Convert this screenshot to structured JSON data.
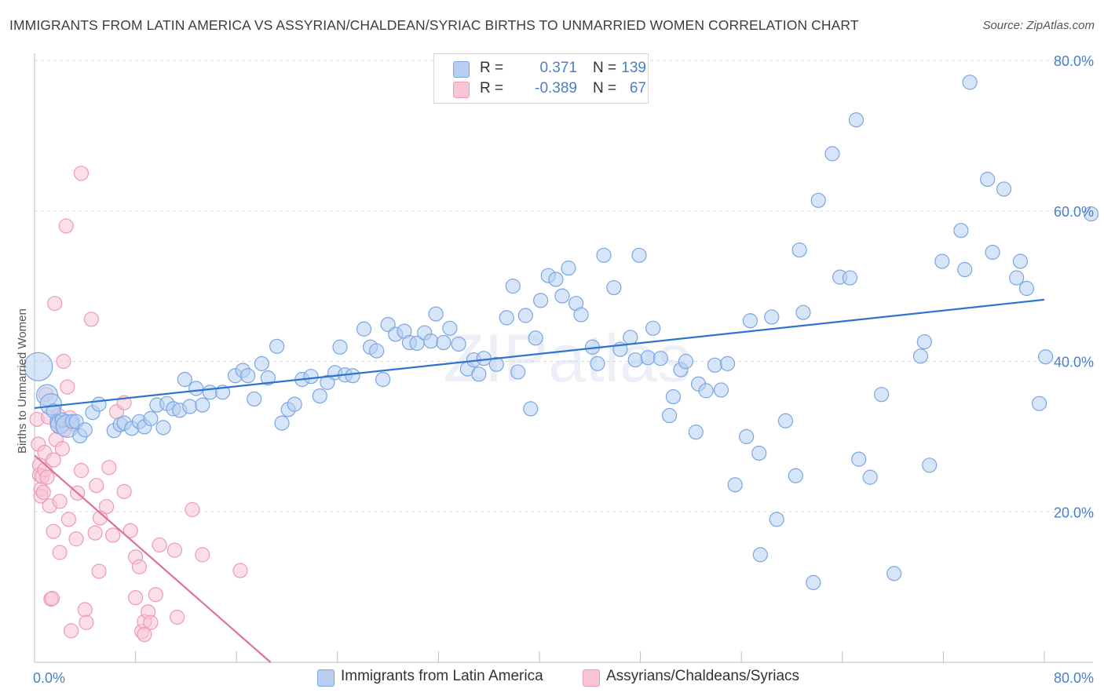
{
  "title": "IMMIGRANTS FROM LATIN AMERICA VS ASSYRIAN/CHALDEAN/SYRIAC BIRTHS TO UNMARRIED WOMEN CORRELATION CHART",
  "source": "Source: ZipAtlas.com",
  "watermark": "ZIPatlas",
  "colors": {
    "blue_fill": "#b7cff2",
    "blue_stroke": "#7ba6e0",
    "blue_line": "#2f73d0",
    "pink_fill": "#f8c5d5",
    "pink_stroke": "#ee9ab5",
    "pink_line": "#e0729a",
    "tick_text": "#4a7fc8",
    "grid": "#d9d9d9"
  },
  "legend_top": {
    "rows": [
      {
        "r_label": "R =",
        "r_value": "0.371",
        "n_label": "N =",
        "n_value": "139"
      },
      {
        "r_label": "R =",
        "r_value": "-0.389",
        "n_label": "N =",
        "n_value": "67"
      }
    ]
  },
  "legend_bottom": [
    "Immigrants from Latin America",
    "Assyrians/Chaldeans/Syriacs"
  ],
  "chart_data": {
    "type": "scatter",
    "title": "IMMIGRANTS FROM LATIN AMERICA VS ASSYRIAN/CHALDEAN/SYRIAC BIRTHS TO UNMARRIED WOMEN CORRELATION CHART",
    "xlabel": "",
    "ylabel": "Births to Unmarried Women",
    "xlim": [
      0,
      80
    ],
    "ylim": [
      0,
      80
    ],
    "x_tick_labels": [
      "0.0%",
      "80.0%"
    ],
    "y_tick_values": [
      20,
      40,
      60,
      80
    ],
    "y_tick_labels": [
      "20.0%",
      "40.0%",
      "60.0%",
      "80.0%"
    ],
    "grid": true,
    "legend_position": "top-center",
    "series": [
      {
        "name": "Immigrants from Latin America",
        "color": "#b7cff2",
        "r": 0.371,
        "n": 139,
        "trend": {
          "x": [
            0,
            80
          ],
          "y": [
            33.8,
            48.2
          ]
        },
        "points": [
          [
            0.3,
            39.3,
            2
          ],
          [
            1.0,
            35.5,
            1.5
          ],
          [
            1.3,
            34.3,
            1.5
          ],
          [
            1.5,
            33.4,
            1
          ],
          [
            1.8,
            32.0,
            1
          ],
          [
            2.0,
            31.6,
            1.3
          ],
          [
            2.2,
            32.2,
            1
          ],
          [
            2.6,
            31.4,
            1.6
          ],
          [
            3.0,
            32.0,
            1
          ],
          [
            3.3,
            32.0,
            1
          ],
          [
            3.6,
            30.1,
            1
          ],
          [
            4.0,
            30.9,
            1
          ],
          [
            4.6,
            33.2,
            1
          ],
          [
            5.1,
            34.3,
            1
          ],
          [
            6.3,
            30.8,
            1
          ],
          [
            6.8,
            31.6,
            1
          ],
          [
            7.1,
            31.8,
            1
          ],
          [
            7.7,
            31.1,
            1
          ],
          [
            8.3,
            32.0,
            1
          ],
          [
            8.7,
            31.3,
            1
          ],
          [
            9.2,
            32.4,
            1
          ],
          [
            9.7,
            34.2,
            1
          ],
          [
            10.2,
            31.2,
            1
          ],
          [
            10.5,
            34.4,
            1
          ],
          [
            11.0,
            33.7,
            1
          ],
          [
            11.5,
            33.5,
            1
          ],
          [
            11.9,
            37.6,
            1
          ],
          [
            12.3,
            34.0,
            1
          ],
          [
            12.8,
            36.4,
            1
          ],
          [
            13.3,
            34.2,
            1
          ],
          [
            13.9,
            35.9,
            1
          ],
          [
            14.9,
            35.9,
            1
          ],
          [
            15.9,
            38.1,
            1
          ],
          [
            16.5,
            38.8,
            1
          ],
          [
            16.9,
            38.1,
            1
          ],
          [
            17.4,
            35.0,
            1
          ],
          [
            18.0,
            39.7,
            1
          ],
          [
            18.5,
            37.8,
            1
          ],
          [
            19.2,
            42.0,
            1
          ],
          [
            19.6,
            31.8,
            1
          ],
          [
            20.1,
            33.6,
            1
          ],
          [
            20.6,
            34.3,
            1
          ],
          [
            21.2,
            37.6,
            1
          ],
          [
            21.9,
            38.0,
            1
          ],
          [
            22.6,
            35.4,
            1
          ],
          [
            23.2,
            37.2,
            1
          ],
          [
            23.8,
            38.5,
            1
          ],
          [
            24.2,
            41.9,
            1
          ],
          [
            24.6,
            38.2,
            1
          ],
          [
            25.2,
            38.1,
            1
          ],
          [
            26.1,
            44.3,
            1
          ],
          [
            26.6,
            41.9,
            1
          ],
          [
            27.1,
            41.4,
            1
          ],
          [
            27.6,
            37.6,
            1
          ],
          [
            28.0,
            44.9,
            1
          ],
          [
            28.6,
            43.6,
            1
          ],
          [
            29.3,
            44.0,
            1
          ],
          [
            29.7,
            42.5,
            1
          ],
          [
            30.3,
            42.4,
            1
          ],
          [
            30.9,
            43.8,
            1
          ],
          [
            31.4,
            42.7,
            1
          ],
          [
            31.8,
            46.3,
            1
          ],
          [
            32.4,
            42.5,
            1
          ],
          [
            32.9,
            44.4,
            1
          ],
          [
            33.6,
            42.3,
            1
          ],
          [
            34.3,
            39.0,
            1
          ],
          [
            34.8,
            40.2,
            1
          ],
          [
            35.2,
            38.3,
            1
          ],
          [
            35.6,
            40.4,
            1
          ],
          [
            36.6,
            39.6,
            1
          ],
          [
            37.4,
            45.8,
            1
          ],
          [
            37.9,
            50.0,
            1
          ],
          [
            38.3,
            38.6,
            1
          ],
          [
            38.9,
            46.1,
            1
          ],
          [
            39.3,
            33.7,
            1
          ],
          [
            39.7,
            43.1,
            1
          ],
          [
            40.1,
            48.1,
            1
          ],
          [
            40.7,
            51.4,
            1
          ],
          [
            41.3,
            50.9,
            1
          ],
          [
            41.8,
            48.7,
            1
          ],
          [
            42.3,
            52.4,
            1
          ],
          [
            42.9,
            47.7,
            1
          ],
          [
            43.3,
            46.2,
            1
          ],
          [
            44.2,
            41.9,
            1
          ],
          [
            44.6,
            39.7,
            1
          ],
          [
            45.1,
            54.1,
            1
          ],
          [
            45.9,
            49.8,
            1
          ],
          [
            46.4,
            41.6,
            1
          ],
          [
            47.2,
            43.2,
            1
          ],
          [
            47.6,
            40.2,
            1
          ],
          [
            47.9,
            54.1,
            1
          ],
          [
            48.6,
            40.5,
            1
          ],
          [
            49.0,
            44.4,
            1
          ],
          [
            49.6,
            40.4,
            1
          ],
          [
            50.3,
            32.8,
            1
          ],
          [
            50.6,
            35.3,
            1
          ],
          [
            51.2,
            38.9,
            1
          ],
          [
            51.6,
            40.0,
            1
          ],
          [
            52.4,
            30.6,
            1
          ],
          [
            52.6,
            37.0,
            1
          ],
          [
            53.2,
            36.1,
            1
          ],
          [
            53.9,
            39.5,
            1
          ],
          [
            54.4,
            36.2,
            1
          ],
          [
            54.9,
            39.7,
            1
          ],
          [
            55.5,
            23.6,
            1
          ],
          [
            56.4,
            30.0,
            1
          ],
          [
            56.7,
            45.4,
            1
          ],
          [
            57.4,
            27.8,
            1
          ],
          [
            57.5,
            14.3,
            1
          ],
          [
            58.4,
            45.9,
            1
          ],
          [
            58.8,
            19.0,
            1
          ],
          [
            59.5,
            32.1,
            1
          ],
          [
            60.3,
            24.8,
            1
          ],
          [
            60.6,
            54.8,
            1
          ],
          [
            60.9,
            46.5,
            1
          ],
          [
            61.7,
            10.6,
            1
          ],
          [
            62.1,
            61.4,
            1
          ],
          [
            63.2,
            67.6,
            1
          ],
          [
            63.8,
            51.2,
            1
          ],
          [
            64.6,
            51.1,
            1
          ],
          [
            65.1,
            72.1,
            1
          ],
          [
            65.3,
            27.0,
            1
          ],
          [
            66.2,
            24.6,
            1
          ],
          [
            67.1,
            35.6,
            1
          ],
          [
            68.1,
            11.8,
            1
          ],
          [
            70.2,
            40.7,
            1
          ],
          [
            70.5,
            42.6,
            1
          ],
          [
            70.9,
            26.2,
            1
          ],
          [
            71.9,
            53.3,
            1
          ],
          [
            73.4,
            57.4,
            1
          ],
          [
            73.7,
            52.2,
            1
          ],
          [
            74.1,
            77.1,
            1
          ],
          [
            75.5,
            64.2,
            1
          ],
          [
            75.9,
            54.5,
            1
          ],
          [
            76.8,
            62.9,
            1
          ],
          [
            77.8,
            51.1,
            1
          ],
          [
            78.1,
            53.3,
            1
          ],
          [
            78.6,
            49.7,
            1
          ],
          [
            79.6,
            34.4,
            1
          ],
          [
            80.1,
            40.6,
            1
          ],
          [
            83.7,
            59.6,
            1
          ]
        ]
      },
      {
        "name": "Assyrians/Chaldeans/Syriacs",
        "color": "#f8c5d5",
        "r": -0.389,
        "n": 67,
        "trend": {
          "x": [
            0,
            18.7
          ],
          "y": [
            27.5,
            0
          ]
        },
        "points": [
          [
            0.2,
            32.3,
            1
          ],
          [
            0.3,
            29.0,
            1
          ],
          [
            0.4,
            26.2,
            1
          ],
          [
            0.4,
            24.9,
            1
          ],
          [
            0.5,
            23.0,
            1
          ],
          [
            0.5,
            22.1,
            1
          ],
          [
            0.6,
            24.7,
            1
          ],
          [
            0.7,
            22.6,
            1
          ],
          [
            0.8,
            27.9,
            1
          ],
          [
            0.8,
            25.6,
            1
          ],
          [
            0.9,
            35.6,
            1
          ],
          [
            1.0,
            24.6,
            1
          ],
          [
            1.1,
            32.6,
            1
          ],
          [
            1.2,
            20.8,
            1
          ],
          [
            1.3,
            8.4,
            1
          ],
          [
            1.4,
            8.5,
            1
          ],
          [
            1.5,
            17.4,
            1
          ],
          [
            1.5,
            26.9,
            1
          ],
          [
            1.6,
            47.7,
            1
          ],
          [
            1.7,
            29.6,
            1
          ],
          [
            1.8,
            31.6,
            1
          ],
          [
            2.0,
            14.6,
            1
          ],
          [
            2.0,
            21.4,
            1
          ],
          [
            2.1,
            31.5,
            1
          ],
          [
            2.2,
            28.4,
            1
          ],
          [
            2.3,
            40.0,
            1
          ],
          [
            2.4,
            31.0,
            1
          ],
          [
            2.5,
            58.0,
            1
          ],
          [
            2.6,
            36.6,
            1
          ],
          [
            2.8,
            32.5,
            1
          ],
          [
            2.9,
            4.2,
            1
          ],
          [
            3.0,
            31.7,
            1
          ],
          [
            3.3,
            16.4,
            1
          ],
          [
            3.4,
            22.5,
            1
          ],
          [
            3.7,
            65.0,
            1
          ],
          [
            4.0,
            7.0,
            1
          ],
          [
            4.1,
            5.3,
            1
          ],
          [
            4.5,
            45.6,
            1
          ],
          [
            4.8,
            17.2,
            1
          ],
          [
            4.9,
            23.5,
            1
          ],
          [
            5.1,
            12.1,
            1
          ],
          [
            5.2,
            19.2,
            1
          ],
          [
            5.7,
            20.7,
            1
          ],
          [
            5.9,
            25.9,
            1
          ],
          [
            6.5,
            33.3,
            1
          ],
          [
            7.1,
            22.7,
            1
          ],
          [
            7.1,
            34.5,
            1
          ],
          [
            7.6,
            17.5,
            1
          ],
          [
            8.0,
            8.6,
            1
          ],
          [
            8.0,
            14.0,
            1
          ],
          [
            8.3,
            12.7,
            1
          ],
          [
            8.5,
            4.1,
            1
          ],
          [
            8.7,
            5.4,
            1
          ],
          [
            9.0,
            6.7,
            1
          ],
          [
            9.2,
            5.3,
            1
          ],
          [
            9.6,
            9.0,
            1
          ],
          [
            9.9,
            15.6,
            1
          ],
          [
            11.1,
            14.9,
            1
          ],
          [
            11.3,
            6.0,
            1
          ],
          [
            12.5,
            20.3,
            1
          ],
          [
            13.3,
            14.3,
            1
          ],
          [
            16.3,
            12.2,
            1
          ],
          [
            8.7,
            3.7,
            1
          ],
          [
            3.7,
            25.5,
            1
          ],
          [
            2.7,
            19.0,
            1
          ],
          [
            1.9,
            32.8,
            1
          ],
          [
            6.2,
            16.9,
            1
          ]
        ]
      }
    ]
  }
}
